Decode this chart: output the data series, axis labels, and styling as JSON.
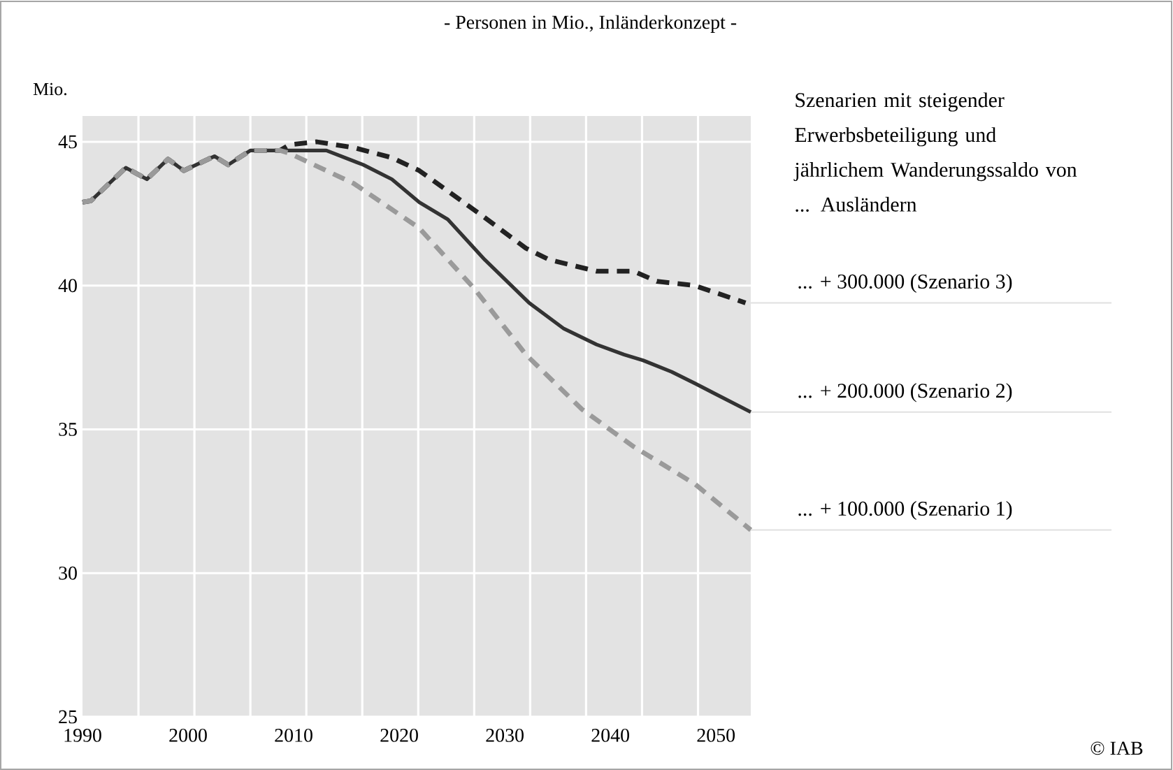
{
  "chart_data": {
    "type": "line",
    "title": "- Personen in Mio., Inländerkonzept -",
    "ylabel": "Mio.",
    "xlim": [
      1990,
      2053.3
    ],
    "ylim": [
      25,
      45.9
    ],
    "xticks": [
      1990,
      2000,
      2010,
      2020,
      2030,
      2040,
      2050,
      {
        "value": 1995.3,
        "label": null
      },
      {
        "value": 2000.6,
        "label": null
      },
      {
        "value": 2005.9,
        "label": null
      },
      {
        "value": 2011.2,
        "label": null
      },
      {
        "value": 2016.5,
        "label": null
      },
      {
        "value": 2021.8,
        "label": null
      },
      {
        "value": 2027.1,
        "label": null
      },
      {
        "value": 2032.4,
        "label": null
      },
      {
        "value": 2037.7,
        "label": null
      },
      {
        "value": 2043.0,
        "label": null
      },
      {
        "value": 2048.3,
        "label": null
      }
    ],
    "yticks": [
      25,
      30,
      35,
      40,
      45
    ],
    "grid": true,
    "legend": false,
    "marker": "none",
    "series": [
      {
        "name": "... + 300.000 (Szenario 3)",
        "color": "#222222",
        "line_style": "dashed",
        "x": [
          1990.0,
          1990.8,
          1994.1,
          1996.1,
          1998.1,
          1999.6,
          2002.5,
          2003.8,
          2005.9,
          2008.7,
          2009.6,
          2012.2,
          2015.7,
          2019.3,
          2021.9,
          2027.6,
          2032.0,
          2034.2,
          2038.7,
          2042.2,
          2044.4,
          2048.0,
          2052.8
        ],
        "values": [
          42.9,
          42.95,
          44.1,
          43.7,
          44.4,
          44.0,
          44.5,
          44.2,
          44.7,
          44.7,
          44.9,
          45.0,
          44.8,
          44.45,
          44.0,
          42.5,
          41.3,
          40.9,
          40.5,
          40.5,
          40.15,
          40.0,
          39.4
        ]
      },
      {
        "name": "... + 200.000 (Szenario 2)",
        "color": "#333333",
        "line_style": "solid",
        "x": [
          1990.0,
          1990.8,
          1994.1,
          1996.1,
          1998.1,
          1999.6,
          2002.5,
          2003.8,
          2005.9,
          2008.7,
          2013.1,
          2016.6,
          2019.3,
          2021.9,
          2024.6,
          2028.1,
          2032.3,
          2035.6,
          2038.7,
          2041.3,
          2043.1,
          2045.8,
          2048.0,
          2053.3
        ],
        "values": [
          42.9,
          42.95,
          44.1,
          43.7,
          44.4,
          44.0,
          44.5,
          44.2,
          44.7,
          44.7,
          44.7,
          44.2,
          43.7,
          42.9,
          42.3,
          40.9,
          39.4,
          38.5,
          37.95,
          37.6,
          37.4,
          37.0,
          36.6,
          35.6
        ]
      },
      {
        "name": "... + 100.000 (Szenario 1)",
        "color": "#9a9a9a",
        "line_style": "dashed",
        "x": [
          1990.0,
          1990.8,
          1994.1,
          1996.1,
          1998.1,
          1999.6,
          2002.5,
          2003.8,
          2005.9,
          2008.7,
          2009.6,
          2015.7,
          2021.9,
          2027.1,
          2032.0,
          2037.3,
          2042.2,
          2048.0,
          2053.3
        ],
        "values": [
          42.9,
          42.95,
          44.1,
          43.7,
          44.4,
          44.0,
          44.5,
          44.2,
          44.7,
          44.7,
          44.6,
          43.55,
          42.0,
          39.9,
          37.6,
          35.7,
          34.4,
          33.1,
          31.5
        ]
      }
    ],
    "annotations": [
      "Szenarien mit steigender Erwerbsbeteiligung und jährlichem Wanderungssaldo von ... Ausländern",
      "© IAB"
    ]
  }
}
